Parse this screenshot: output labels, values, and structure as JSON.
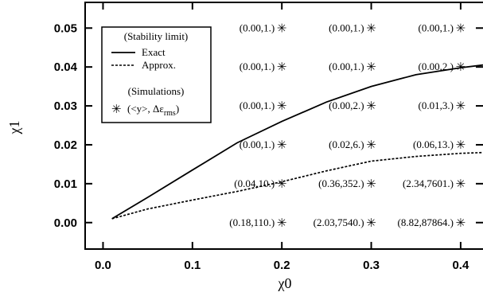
{
  "chart_data": {
    "type": "line",
    "xlabel": "χ0",
    "ylabel": "χ1",
    "xlim": [
      -0.02,
      0.425
    ],
    "ylim": [
      -0.0068,
      0.0566
    ],
    "x_ticks": [
      "0.0",
      "0.1",
      "0.2",
      "0.3",
      "0.4"
    ],
    "x_tick_values": [
      0.0,
      0.1,
      0.2,
      0.3,
      0.4
    ],
    "y_ticks": [
      "0.00",
      "0.01",
      "0.02",
      "0.03",
      "0.04",
      "0.05"
    ],
    "y_tick_values": [
      0.0,
      0.01,
      0.02,
      0.03,
      0.04,
      0.05
    ],
    "legend": {
      "placement": "top-left",
      "heading1": "(Stability limit)",
      "exact_label": "Exact",
      "approx_label": "Approx.",
      "heading2": "(Simulations)",
      "sim_prefix": "(<y>, Δε",
      "sim_sub": "rms",
      "sim_suffix": ")",
      "sim_marker": "✳"
    },
    "series": [
      {
        "name": "Exact",
        "style": "solid",
        "x": [
          0.01,
          0.05,
          0.1,
          0.15,
          0.2,
          0.25,
          0.3,
          0.35,
          0.4,
          0.425
        ],
        "y": [
          0.001,
          0.0065,
          0.0135,
          0.0205,
          0.026,
          0.031,
          0.035,
          0.038,
          0.0398,
          0.0405
        ]
      },
      {
        "name": "Approx.",
        "style": "dashed",
        "x": [
          0.01,
          0.05,
          0.1,
          0.15,
          0.2,
          0.25,
          0.3,
          0.35,
          0.4,
          0.425
        ],
        "y": [
          0.001,
          0.0035,
          0.0058,
          0.008,
          0.0105,
          0.0133,
          0.0158,
          0.017,
          0.0178,
          0.018
        ]
      }
    ],
    "simulations": [
      {
        "x": 0.2,
        "y": 0.0,
        "label": "(0.18,110.)"
      },
      {
        "x": 0.3,
        "y": 0.0,
        "label": "(2.03,7540.)"
      },
      {
        "x": 0.4,
        "y": 0.0,
        "label": "(8.82,87864.)"
      },
      {
        "x": 0.2,
        "y": 0.01,
        "label": "(0.04,10.)"
      },
      {
        "x": 0.3,
        "y": 0.01,
        "label": "(0.36,352.)"
      },
      {
        "x": 0.4,
        "y": 0.01,
        "label": "(2.34,7601.)"
      },
      {
        "x": 0.2,
        "y": 0.02,
        "label": "(0.00,1.)"
      },
      {
        "x": 0.3,
        "y": 0.02,
        "label": "(0.02,6.)"
      },
      {
        "x": 0.4,
        "y": 0.02,
        "label": "(0.06,13.)"
      },
      {
        "x": 0.2,
        "y": 0.03,
        "label": "(0.00,1.)"
      },
      {
        "x": 0.3,
        "y": 0.03,
        "label": "(0.00,2.)"
      },
      {
        "x": 0.4,
        "y": 0.03,
        "label": "(0.01,3.)"
      },
      {
        "x": 0.2,
        "y": 0.04,
        "label": "(0.00,1.)"
      },
      {
        "x": 0.3,
        "y": 0.04,
        "label": "(0.00,1.)"
      },
      {
        "x": 0.4,
        "y": 0.04,
        "label": "(0.00,2.)"
      },
      {
        "x": 0.2,
        "y": 0.05,
        "label": "(0.00,1.)"
      },
      {
        "x": 0.3,
        "y": 0.05,
        "label": "(0.00,1.)"
      },
      {
        "x": 0.4,
        "y": 0.05,
        "label": "(0.00,1.)"
      }
    ]
  }
}
